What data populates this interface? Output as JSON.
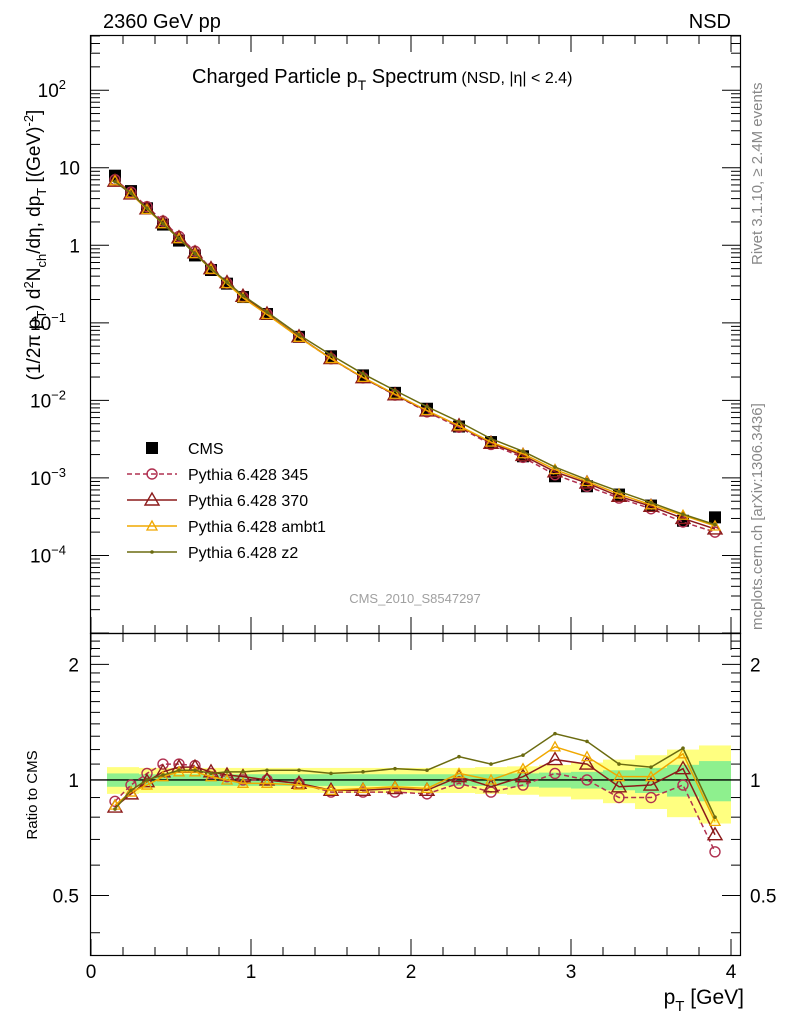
{
  "header": {
    "left": "2360 GeV pp",
    "right": "NSD"
  },
  "title": {
    "main": "Charged Particle p",
    "main_sub": "T",
    "main_tail": " Spectrum",
    "extra": "(NSD, |η| < 2.4)"
  },
  "ylabel": {
    "a": "(1/2π p",
    "a_sub": "T",
    "b": ") d",
    "b_sup": "2",
    "c": "N",
    "c_sub": "ch",
    "d": "/dη, dp",
    "d_sub": "T",
    "e": " [(GeV)",
    "e_sup": "-2",
    "f": "]"
  },
  "xlabel": {
    "main": "p",
    "sub": "T",
    "tail": " [GeV]"
  },
  "ratio_ylabel": "Ratio to CMS",
  "watermark": "CMS_2010_S8547297",
  "side_text": {
    "top": "Rivet 3.1.10, ≥ 2.4M events",
    "bottom": "mcplots.cern.ch [arXiv:1306.3436]"
  },
  "colors": {
    "cms": "#000000",
    "p345": "#b03050",
    "p370": "#8b1a1a",
    "ambt1": "#f0a800",
    "z2": "#6b6b10",
    "band_inner": "#8ef08e",
    "band_outer": "#ffff80"
  },
  "chart_data": [
    {
      "type": "line",
      "title": "Charged Particle pT Spectrum (NSD, |η| < 2.4)",
      "xlabel": "pT [GeV]",
      "ylabel": "(1/2π pT) d2Nch/dη, dpT [(GeV)-2]",
      "yscale": "log",
      "xlim": [
        0,
        4.1
      ],
      "ylim": [
        1e-05,
        500
      ],
      "x_ticks": [
        "0",
        "1",
        "2",
        "3",
        "4"
      ],
      "y_ticks": [
        "10^-4",
        "10^-3",
        "10^-2",
        "10^-1",
        "1",
        "10",
        "10^2"
      ],
      "legend_position": "center-left",
      "x": [
        0.15,
        0.25,
        0.35,
        0.45,
        0.55,
        0.65,
        0.75,
        0.85,
        0.95,
        1.1,
        1.3,
        1.5,
        1.7,
        1.9,
        2.1,
        2.3,
        2.5,
        2.7,
        2.9,
        3.1,
        3.3,
        3.5,
        3.7,
        3.9
      ],
      "series": [
        {
          "name": "CMS",
          "marker": "square",
          "values": [
            7.9,
            5.0,
            3.0,
            1.85,
            1.15,
            0.74,
            0.48,
            0.32,
            0.215,
            0.13,
            0.066,
            0.037,
            0.021,
            0.0125,
            0.0078,
            0.0046,
            0.0029,
            0.0019,
            0.00105,
            0.00078,
            0.00061,
            0.00044,
            0.00028,
            0.00031
          ]
        },
        {
          "name": "Pythia 6.428 345",
          "marker": "circle-open",
          "dashed": true,
          "values": [
            7.0,
            4.85,
            3.15,
            2.05,
            1.3,
            0.84,
            0.5,
            0.325,
            0.215,
            0.13,
            0.065,
            0.0345,
            0.0195,
            0.0117,
            0.0071,
            0.0045,
            0.0027,
            0.00184,
            0.0011,
            0.00078,
            0.00055,
            0.0004,
            0.00027,
            0.0002
          ]
        },
        {
          "name": "Pythia 6.428 370",
          "marker": "triangle-open",
          "values": [
            6.7,
            4.6,
            2.95,
            1.95,
            1.25,
            0.8,
            0.5,
            0.33,
            0.22,
            0.13,
            0.066,
            0.0346,
            0.0196,
            0.0118,
            0.0073,
            0.0047,
            0.0028,
            0.00195,
            0.0012,
            0.00086,
            0.00058,
            0.00043,
            0.0003,
            0.00022
          ]
        },
        {
          "name": "Pythia 6.428 ambt1",
          "marker": "triangle-open-small",
          "values": [
            6.8,
            4.65,
            2.9,
            1.9,
            1.22,
            0.78,
            0.49,
            0.32,
            0.21,
            0.128,
            0.065,
            0.0346,
            0.0198,
            0.012,
            0.0074,
            0.0047,
            0.0029,
            0.00205,
            0.00128,
            0.0009,
            0.00062,
            0.00045,
            0.00033,
            0.00024
          ]
        },
        {
          "name": "Pythia 6.428 z2",
          "marker": "dot",
          "values": [
            6.6,
            4.7,
            3.0,
            1.9,
            1.22,
            0.78,
            0.5,
            0.335,
            0.225,
            0.138,
            0.07,
            0.0385,
            0.022,
            0.0134,
            0.0083,
            0.0053,
            0.0032,
            0.0022,
            0.00138,
            0.00095,
            0.00067,
            0.00048,
            0.00034,
            0.00025
          ]
        }
      ]
    },
    {
      "type": "line",
      "ylabel": "Ratio to CMS",
      "xlim": [
        0,
        4.1
      ],
      "ylim": [
        0.35,
        2.4
      ],
      "y_ticks": [
        "0.5",
        "1",
        "2"
      ],
      "x": [
        0.15,
        0.25,
        0.35,
        0.45,
        0.55,
        0.65,
        0.75,
        0.85,
        0.95,
        1.1,
        1.3,
        1.5,
        1.7,
        1.9,
        2.1,
        2.3,
        2.5,
        2.7,
        2.9,
        3.1,
        3.3,
        3.5,
        3.7,
        3.9
      ],
      "bands": {
        "edges": [
          0.1,
          0.2,
          0.3,
          0.4,
          0.5,
          0.6,
          0.7,
          0.8,
          0.9,
          1.0,
          1.2,
          1.4,
          1.6,
          1.8,
          2.0,
          2.2,
          2.4,
          2.6,
          2.8,
          3.0,
          3.2,
          3.4,
          3.6,
          3.8,
          4.0
        ],
        "inner_halfwidth": [
          0.04,
          0.04,
          0.035,
          0.035,
          0.035,
          0.035,
          0.035,
          0.035,
          0.035,
          0.035,
          0.035,
          0.035,
          0.035,
          0.035,
          0.035,
          0.035,
          0.035,
          0.04,
          0.045,
          0.05,
          0.06,
          0.075,
          0.095,
          0.12
        ],
        "outer_halfwidth": [
          0.08,
          0.08,
          0.075,
          0.075,
          0.075,
          0.075,
          0.075,
          0.075,
          0.075,
          0.075,
          0.075,
          0.075,
          0.075,
          0.075,
          0.075,
          0.075,
          0.08,
          0.085,
          0.095,
          0.11,
          0.13,
          0.16,
          0.2,
          0.23
        ]
      },
      "series": [
        {
          "name": "Pythia 6.428 345",
          "values": [
            0.88,
            0.97,
            1.04,
            1.1,
            1.1,
            1.09,
            1.04,
            1.02,
            1.0,
            1.0,
            0.98,
            0.93,
            0.93,
            0.93,
            0.92,
            0.98,
            0.93,
            0.97,
            1.04,
            1.0,
            0.9,
            0.9,
            0.97,
            0.65
          ]
        },
        {
          "name": "Pythia 6.428 370",
          "values": [
            0.85,
            0.92,
            0.99,
            1.05,
            1.08,
            1.08,
            1.05,
            1.03,
            1.02,
            1.0,
            0.98,
            0.94,
            0.94,
            0.95,
            0.94,
            1.02,
            0.96,
            1.02,
            1.13,
            1.1,
            0.96,
            0.97,
            1.07,
            0.72
          ]
        },
        {
          "name": "Pythia 6.428 ambt1",
          "values": [
            0.86,
            0.93,
            0.97,
            1.02,
            1.05,
            1.05,
            1.02,
            1.0,
            0.98,
            0.98,
            0.97,
            0.94,
            0.95,
            0.96,
            0.95,
            1.04,
            1.0,
            1.07,
            1.22,
            1.15,
            1.02,
            1.02,
            1.17,
            0.78
          ]
        },
        {
          "name": "Pythia 6.428 z2",
          "values": [
            0.84,
            0.94,
            1.0,
            1.03,
            1.06,
            1.06,
            1.04,
            1.05,
            1.05,
            1.06,
            1.06,
            1.04,
            1.05,
            1.07,
            1.06,
            1.15,
            1.1,
            1.16,
            1.32,
            1.26,
            1.1,
            1.08,
            1.21,
            0.8
          ]
        }
      ]
    }
  ],
  "legend": [
    {
      "name": "CMS",
      "key": "cms"
    },
    {
      "name": "Pythia 6.428 345",
      "key": "p345"
    },
    {
      "name": "Pythia 6.428 370",
      "key": "p370"
    },
    {
      "name": "Pythia 6.428 ambt1",
      "key": "ambt1"
    },
    {
      "name": "Pythia 6.428 z2",
      "key": "z2"
    }
  ]
}
